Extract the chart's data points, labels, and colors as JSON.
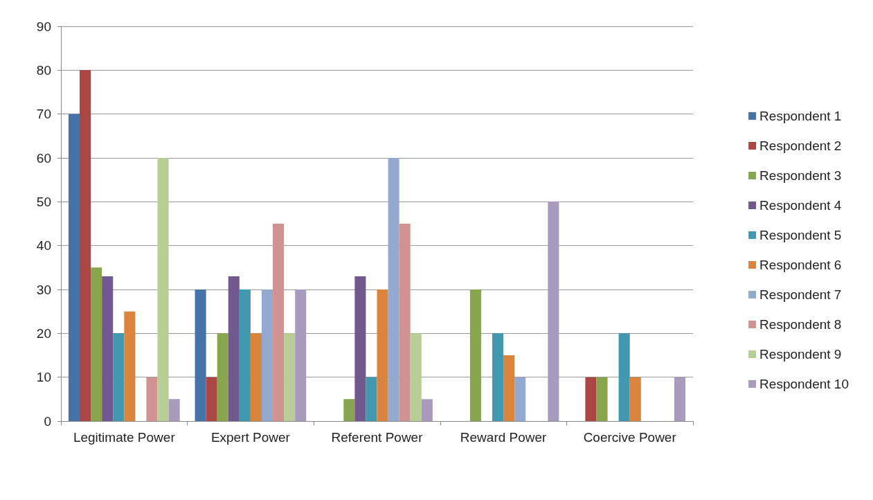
{
  "chart_data": {
    "type": "bar",
    "categories": [
      "Legitimate Power",
      "Expert Power",
      "Referent Power",
      "Reward Power",
      "Coercive Power"
    ],
    "series": [
      {
        "name": "Respondent 1",
        "color": "#4572a7",
        "values": [
          70,
          30,
          0,
          0,
          0
        ]
      },
      {
        "name": "Respondent 2",
        "color": "#aa4643",
        "values": [
          80,
          10,
          0,
          0,
          10
        ]
      },
      {
        "name": "Respondent 3",
        "color": "#89a54e",
        "values": [
          35,
          20,
          5,
          30,
          10
        ]
      },
      {
        "name": "Respondent 4",
        "color": "#71588f",
        "values": [
          33,
          33,
          33,
          0,
          0
        ]
      },
      {
        "name": "Respondent 5",
        "color": "#4198af",
        "values": [
          20,
          30,
          10,
          20,
          20
        ]
      },
      {
        "name": "Respondent 6",
        "color": "#db843d",
        "values": [
          25,
          20,
          30,
          15,
          10
        ]
      },
      {
        "name": "Respondent 7",
        "color": "#93a9cf",
        "values": [
          0,
          30,
          60,
          10,
          0
        ]
      },
      {
        "name": "Respondent 8",
        "color": "#d19392",
        "values": [
          10,
          45,
          45,
          0,
          0
        ]
      },
      {
        "name": "Respondent 9",
        "color": "#b9cd96",
        "values": [
          60,
          20,
          20,
          0,
          0
        ]
      },
      {
        "name": "Respondent 10",
        "color": "#a99bbd",
        "values": [
          5,
          30,
          5,
          50,
          10
        ]
      }
    ],
    "ylim": [
      0,
      90
    ],
    "yticks": [
      0,
      10,
      20,
      30,
      40,
      50,
      60,
      70,
      80,
      90
    ],
    "grid": "y",
    "legend": "right"
  }
}
